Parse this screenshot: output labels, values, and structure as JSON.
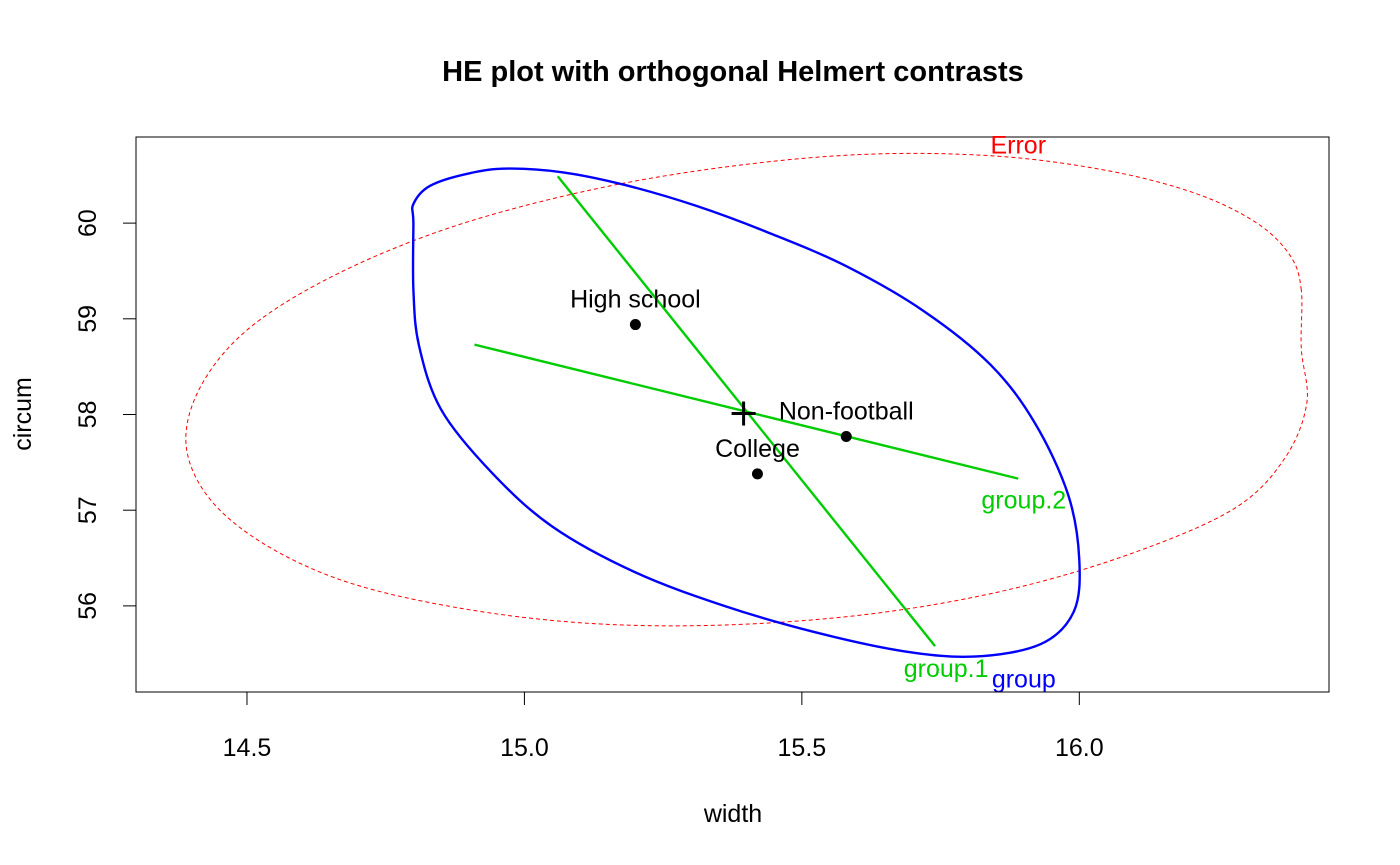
{
  "chart_data": {
    "type": "scatter",
    "title": "HE plot with orthogonal Helmert contrasts",
    "xlabel": "width",
    "ylabel": "circum",
    "xlim": [
      14.3,
      16.45
    ],
    "ylim": [
      55.1,
      60.9
    ],
    "xticks": [
      14.5,
      15.0,
      15.5,
      16.0
    ],
    "xtick_labels": [
      "14.5",
      "15.0",
      "15.5",
      "16.0"
    ],
    "yticks": [
      56,
      57,
      58,
      59,
      60
    ],
    "ytick_labels": [
      "56",
      "57",
      "58",
      "59",
      "60"
    ],
    "grid": false,
    "grand_mean": {
      "x": 15.395,
      "y": 58.01
    },
    "points": [
      {
        "label": "High school",
        "x": 15.2,
        "y": 58.94,
        "label_pos": "above"
      },
      {
        "label": "Non-football",
        "x": 15.58,
        "y": 57.77,
        "label_pos": "above"
      },
      {
        "label": "College",
        "x": 15.42,
        "y": 57.38,
        "label_pos": "above"
      }
    ],
    "ellipses": [
      {
        "name": "Error",
        "color": "#ff0000",
        "style": "dashed",
        "label_at": {
          "x": 15.89,
          "y": 60.82
        },
        "outline": [
          [
            16.4,
            59.3
          ],
          [
            16.38,
            59.66
          ],
          [
            16.32,
            60
          ],
          [
            16.21,
            60.31
          ],
          [
            16.05,
            60.55
          ],
          [
            15.85,
            60.7
          ],
          [
            15.62,
            60.72
          ],
          [
            15.38,
            60.6
          ],
          [
            15.13,
            60.36
          ],
          [
            14.88,
            59.98
          ],
          [
            14.67,
            59.49
          ],
          [
            14.51,
            58.93
          ],
          [
            14.42,
            58.33
          ],
          [
            14.39,
            57.71
          ],
          [
            14.43,
            57.14
          ],
          [
            14.53,
            56.65
          ],
          [
            14.68,
            56.25
          ],
          [
            14.88,
            55.98
          ],
          [
            15.11,
            55.82
          ],
          [
            15.36,
            55.8
          ],
          [
            15.63,
            55.92
          ],
          [
            15.88,
            56.18
          ],
          [
            16.1,
            56.56
          ],
          [
            16.28,
            57.02
          ],
          [
            16.37,
            57.54
          ],
          [
            16.41,
            58.12
          ],
          [
            16.4,
            58.69
          ],
          [
            16.4,
            59.3
          ]
        ]
      },
      {
        "name": "group",
        "color": "#0000ff",
        "style": "solid",
        "label_at": {
          "x": 15.9,
          "y": 55.24
        },
        "outline": [
          [
            14.8,
            60.0
          ],
          [
            14.8,
            60.2
          ],
          [
            14.83,
            60.39
          ],
          [
            14.9,
            60.52
          ],
          [
            14.97,
            60.57
          ],
          [
            15.07,
            60.53
          ],
          [
            15.18,
            60.4
          ],
          [
            15.31,
            60.18
          ],
          [
            15.44,
            59.9
          ],
          [
            15.58,
            59.55
          ],
          [
            15.72,
            59.08
          ],
          [
            15.84,
            58.52
          ],
          [
            15.92,
            57.91
          ],
          [
            15.98,
            57.16
          ],
          [
            16.0,
            56.48
          ],
          [
            15.99,
            55.94
          ],
          [
            15.93,
            55.6
          ],
          [
            15.81,
            55.47
          ],
          [
            15.68,
            55.53
          ],
          [
            15.52,
            55.73
          ],
          [
            15.36,
            56.0
          ],
          [
            15.2,
            56.35
          ],
          [
            15.05,
            56.83
          ],
          [
            14.94,
            57.4
          ],
          [
            14.85,
            58.05
          ],
          [
            14.81,
            58.72
          ],
          [
            14.8,
            59.3
          ],
          [
            14.8,
            60.0
          ]
        ]
      }
    ],
    "segments": [
      {
        "name": "group.1",
        "color": "#00cd00",
        "from": {
          "x": 15.06,
          "y": 60.49
        },
        "to": {
          "x": 15.74,
          "y": 55.58
        },
        "label_at": {
          "x": 15.76,
          "y": 55.35
        }
      },
      {
        "name": "group.2",
        "color": "#00cd00",
        "from": {
          "x": 14.91,
          "y": 58.73
        },
        "to": {
          "x": 15.89,
          "y": 57.33
        },
        "label_at": {
          "x": 15.9,
          "y": 57.11
        }
      }
    ]
  }
}
